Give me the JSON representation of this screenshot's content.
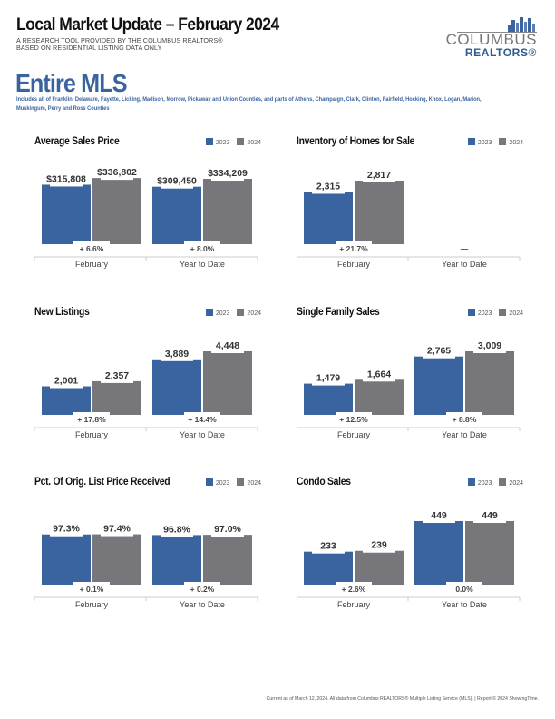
{
  "header": {
    "title": "Local Market Update – February 2024",
    "subtitle_line1": "A RESEARCH TOOL PROVIDED BY THE COLUMBUS REALTORS®",
    "subtitle_line2": "BASED ON RESIDENTIAL LISTING DATA ONLY"
  },
  "logo": {
    "line1": "COLUMBUS",
    "line2": "REALTORS®"
  },
  "area": {
    "title": "Entire MLS",
    "description": "Includes all of Franklin, Delaware, Fayette, Licking, Madison, Morrow, Pickaway and Union Counties, and parts of Athens, Champaign, Clark, Clinton, Fairfield, Hocking, Knox, Logan, Marion, Muskingum, Perry and Ross Counties"
  },
  "colors": {
    "series_2023": "#3a64a0",
    "series_2024": "#77767b",
    "accent": "#3a64a0"
  },
  "legend": {
    "series_2023": "2023",
    "series_2024": "2024"
  },
  "footer": "Current as of March 12, 2024. All data from Columbus REALTORS® Multiple Listing Service (MLS). | Report © 2024 ShowingTime.",
  "chart_data": [
    {
      "type": "bar",
      "title": "Average Sales Price",
      "categories": [
        "February",
        "Year to Date"
      ],
      "series": [
        {
          "name": "2023",
          "values": [
            315808,
            309450
          ]
        },
        {
          "name": "2024",
          "values": [
            336802,
            334209
          ]
        }
      ],
      "value_labels": [
        [
          "$315,808",
          "$336,802"
        ],
        [
          "$309,450",
          "$334,209"
        ]
      ],
      "change_labels": [
        "+ 6.6%",
        "+ 8.0%"
      ],
      "legend": "top-right"
    },
    {
      "type": "bar",
      "title": "Inventory of Homes for Sale",
      "categories": [
        "February",
        "Year to Date"
      ],
      "series": [
        {
          "name": "2023",
          "values": [
            2315,
            null
          ]
        },
        {
          "name": "2024",
          "values": [
            2817,
            null
          ]
        }
      ],
      "value_labels": [
        [
          "2,315",
          "2,817"
        ],
        [
          null,
          null
        ]
      ],
      "change_labels": [
        "+ 21.7%",
        "—"
      ],
      "legend": "top-right"
    },
    {
      "type": "bar",
      "title": "New Listings",
      "categories": [
        "February",
        "Year to Date"
      ],
      "series": [
        {
          "name": "2023",
          "values": [
            2001,
            3889
          ]
        },
        {
          "name": "2024",
          "values": [
            2357,
            4448
          ]
        }
      ],
      "value_labels": [
        [
          "2,001",
          "2,357"
        ],
        [
          "3,889",
          "4,448"
        ]
      ],
      "change_labels": [
        "+ 17.8%",
        "+ 14.4%"
      ],
      "legend": "top-right"
    },
    {
      "type": "bar",
      "title": "Single Family Sales",
      "categories": [
        "February",
        "Year to Date"
      ],
      "series": [
        {
          "name": "2023",
          "values": [
            1479,
            2765
          ]
        },
        {
          "name": "2024",
          "values": [
            1664,
            3009
          ]
        }
      ],
      "value_labels": [
        [
          "1,479",
          "1,664"
        ],
        [
          "2,765",
          "3,009"
        ]
      ],
      "change_labels": [
        "+ 12.5%",
        "+ 8.8%"
      ],
      "legend": "top-right"
    },
    {
      "type": "bar",
      "title": "Pct. Of Orig. List Price Received",
      "categories": [
        "February",
        "Year to Date"
      ],
      "series": [
        {
          "name": "2023",
          "values": [
            97.3,
            96.8
          ]
        },
        {
          "name": "2024",
          "values": [
            97.4,
            97.0
          ]
        }
      ],
      "value_labels": [
        [
          "97.3%",
          "97.4%"
        ],
        [
          "96.8%",
          "97.0%"
        ]
      ],
      "change_labels": [
        "+ 0.1%",
        "+ 0.2%"
      ],
      "legend": "top-right"
    },
    {
      "type": "bar",
      "title": "Condo Sales",
      "categories": [
        "February",
        "Year to Date"
      ],
      "series": [
        {
          "name": "2023",
          "values": [
            233,
            449
          ]
        },
        {
          "name": "2024",
          "values": [
            239,
            449
          ]
        }
      ],
      "value_labels": [
        [
          "233",
          "239"
        ],
        [
          "449",
          "449"
        ]
      ],
      "change_labels": [
        "+ 2.6%",
        "0.0%"
      ],
      "legend": "top-right"
    }
  ]
}
